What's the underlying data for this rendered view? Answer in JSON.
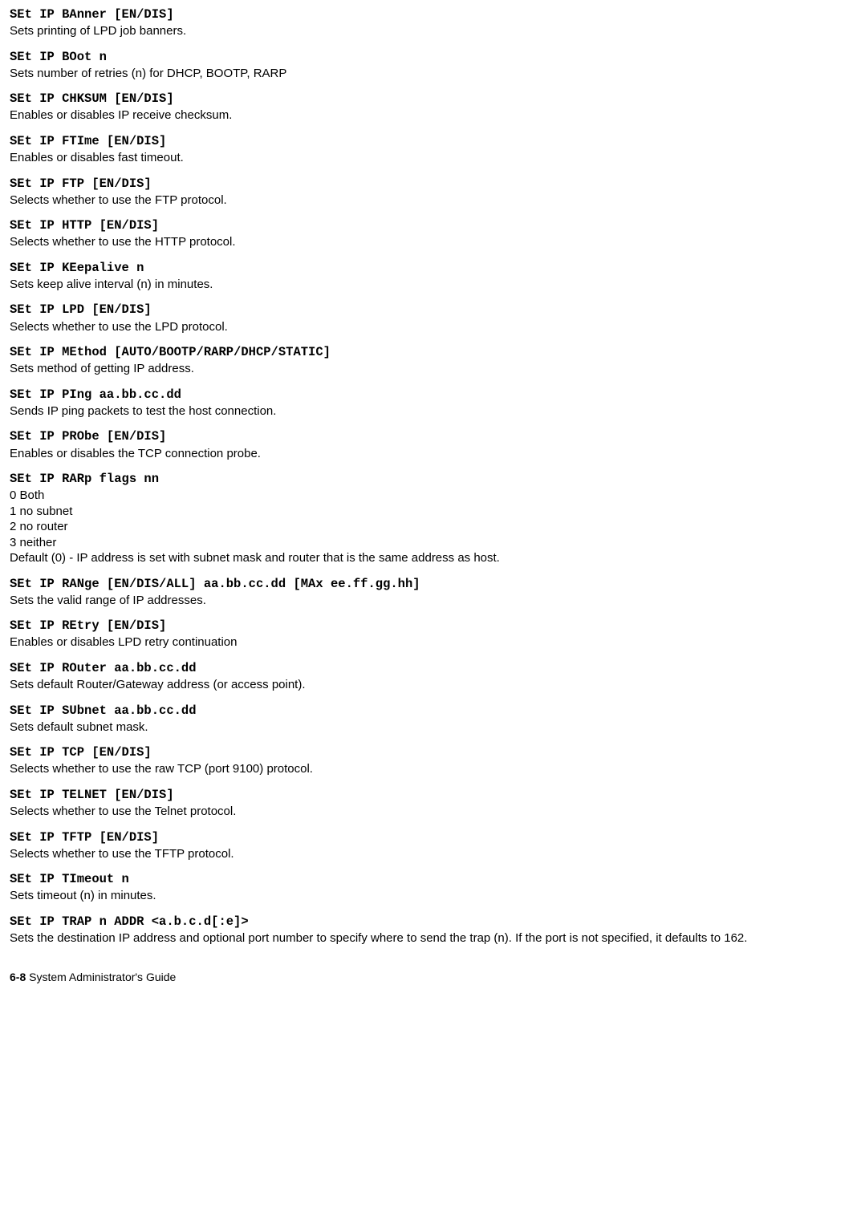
{
  "entries": [
    {
      "cmd": "SEt IP BAnner [EN/DIS]",
      "desc": "Sets printing of LPD job banners."
    },
    {
      "cmd": "SEt IP BOot n",
      "desc": "Sets number of retries (n) for DHCP, BOOTP, RARP"
    },
    {
      "cmd": "SEt IP CHKSUM [EN/DIS]",
      "desc": "Enables or disables IP receive checksum."
    },
    {
      "cmd": "SEt IP FTIme [EN/DIS]",
      "desc": "Enables or disables fast timeout."
    },
    {
      "cmd": "SEt IP FTP [EN/DIS]",
      "desc": "Selects whether to use the FTP protocol."
    },
    {
      "cmd": "SEt IP HTTP [EN/DIS]",
      "desc": "Selects whether to use the HTTP protocol."
    },
    {
      "cmd": "SEt IP KEepalive n",
      "desc": "Sets keep alive interval (n) in minutes."
    },
    {
      "cmd": "SEt IP LPD [EN/DIS]",
      "desc": "Selects whether to use the LPD protocol."
    },
    {
      "cmd": "SEt IP MEthod [AUTO/BOOTP/RARP/DHCP/STATIC]",
      "desc": "Sets method of getting IP address."
    },
    {
      "cmd": "SEt IP PIng aa.bb.cc.dd",
      "desc": "Sends IP ping packets to test the host connection."
    },
    {
      "cmd": "SEt IP PRObe [EN/DIS]",
      "desc": "Enables or disables the TCP connection probe."
    }
  ],
  "rarp": {
    "cmd": "SEt IP RARp flags nn",
    "lines": [
      "0 Both",
      "1 no subnet",
      "2 no router",
      "3 neither",
      "Default (0) - IP address is set with subnet mask and router that is the same address as host."
    ]
  },
  "entries2": [
    {
      "cmd": "SEt IP RANge [EN/DIS/ALL] aa.bb.cc.dd [MAx ee.ff.gg.hh]",
      "desc": "Sets the valid range of IP addresses."
    },
    {
      "cmd": "SEt IP REtry [EN/DIS]",
      "desc": "Enables or disables LPD retry continuation"
    },
    {
      "cmd": "SEt IP ROuter aa.bb.cc.dd",
      "desc": "Sets default Router/Gateway address (or access point)."
    },
    {
      "cmd": "SEt IP SUbnet aa.bb.cc.dd",
      "desc": "Sets default subnet mask."
    },
    {
      "cmd": "SEt IP TCP [EN/DIS]",
      "desc": "Selects whether to use the raw TCP (port 9100) protocol."
    },
    {
      "cmd": "SEt IP TELNET [EN/DIS]",
      "desc": "Selects whether to use the Telnet protocol."
    },
    {
      "cmd": "SEt IP TFTP [EN/DIS]",
      "desc": "Selects whether to use the TFTP protocol."
    },
    {
      "cmd": "SEt IP TImeout n",
      "desc": "Sets timeout (n) in minutes."
    },
    {
      "cmd": "SEt IP TRAP n ADDR <a.b.c.d[:e]>",
      "desc": "Sets the destination IP address and optional port number to specify where to send the trap (n). If the port is not specified, it defaults to 162."
    }
  ],
  "footer": {
    "page": "6-8",
    "title": "System Administrator's Guide"
  }
}
